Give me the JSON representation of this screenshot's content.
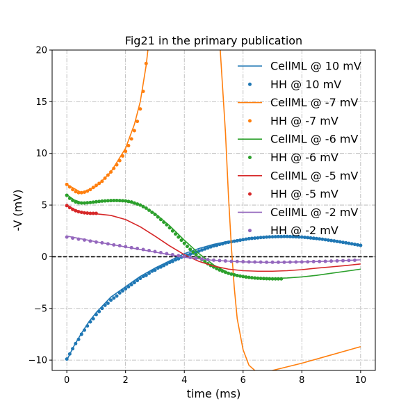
{
  "chart_data": {
    "type": "line",
    "title": "Fig21 in the primary publication",
    "xlabel": "time (ms)",
    "ylabel": "-V (mV)",
    "xlim": [
      -0.5,
      10.5
    ],
    "ylim": [
      -11,
      20
    ],
    "xticks": [
      0,
      2,
      4,
      6,
      8,
      10
    ],
    "yticks": [
      -10,
      -5,
      0,
      5,
      10,
      15,
      20
    ],
    "tick_labels_x": [
      "0",
      "2",
      "4",
      "6",
      "8",
      "10"
    ],
    "tick_labels_y": [
      "−10",
      "−5",
      "0",
      "5",
      "10",
      "15",
      "20"
    ],
    "grid": true,
    "legend_position": "top-right",
    "reference_line": {
      "y": 0,
      "style": "dashed",
      "color": "#000000"
    },
    "series": [
      {
        "name": "CellML @ 10 mV",
        "kind": "line",
        "color": "#1f77b4",
        "x": [
          0,
          0.25,
          0.5,
          0.75,
          1,
          1.5,
          2,
          2.5,
          3,
          3.5,
          4,
          4.5,
          5,
          5.5,
          6,
          6.5,
          7,
          7.5,
          8,
          8.5,
          9,
          9.5,
          10
        ],
        "y": [
          -10,
          -8.6,
          -7.4,
          -6.3,
          -5.4,
          -3.9,
          -2.9,
          -1.9,
          -1.1,
          -0.4,
          0.3,
          0.8,
          1.2,
          1.5,
          1.7,
          1.85,
          1.9,
          1.9,
          1.85,
          1.7,
          1.55,
          1.35,
          1.1
        ]
      },
      {
        "name": "HH @ 10 mV",
        "kind": "points",
        "color": "#1f77b4",
        "x": [
          0,
          0.1,
          0.2,
          0.3,
          0.4,
          0.5,
          0.6,
          0.7,
          0.8,
          0.9,
          1,
          1.1,
          1.2,
          1.3,
          1.4,
          1.5,
          1.6,
          1.7,
          1.8,
          1.9,
          2,
          2.1,
          2.2,
          2.3,
          2.4,
          2.5,
          2.6,
          2.7,
          2.8,
          2.9,
          3,
          3.1,
          3.2,
          3.3,
          3.4,
          3.5,
          3.6,
          3.7,
          3.8,
          3.9,
          4,
          4.1,
          4.2,
          4.3,
          4.4,
          4.5,
          4.6,
          4.7,
          4.8,
          4.9,
          5,
          5.1,
          5.2,
          5.3,
          5.4,
          5.5,
          5.6,
          5.7,
          5.8,
          5.9,
          6,
          6.1,
          6.2,
          6.3,
          6.4,
          6.5,
          6.6,
          6.7,
          6.8,
          6.9,
          7,
          7.1,
          7.2,
          7.3,
          7.4,
          7.5,
          7.6,
          7.7,
          7.8,
          7.9,
          8,
          8.1,
          8.2,
          8.3,
          8.4,
          8.5,
          8.6,
          8.7,
          8.8,
          8.9,
          9,
          9.1,
          9.2,
          9.3,
          9.4,
          9.5,
          9.6,
          9.7,
          9.8,
          9.9,
          10
        ],
        "y": [
          -9.9,
          -9.4,
          -8.9,
          -8.4,
          -8,
          -7.5,
          -7.1,
          -6.7,
          -6.3,
          -6,
          -5.6,
          -5.3,
          -5,
          -4.7,
          -4.5,
          -4.2,
          -4,
          -3.8,
          -3.5,
          -3.3,
          -3.1,
          -2.9,
          -2.7,
          -2.5,
          -2.3,
          -2.1,
          -1.9,
          -1.8,
          -1.6,
          -1.4,
          -1.3,
          -1.1,
          -1,
          -0.85,
          -0.7,
          -0.55,
          -0.45,
          -0.3,
          -0.2,
          -0.05,
          0.05,
          0.15,
          0.25,
          0.35,
          0.45,
          0.55,
          0.65,
          0.75,
          0.85,
          0.95,
          1.05,
          1.1,
          1.2,
          1.25,
          1.35,
          1.4,
          1.45,
          1.5,
          1.55,
          1.6,
          1.65,
          1.7,
          1.75,
          1.78,
          1.8,
          1.83,
          1.86,
          1.88,
          1.9,
          1.92,
          1.93,
          1.94,
          1.95,
          1.95,
          1.96,
          1.96,
          1.95,
          1.94,
          1.93,
          1.91,
          1.9,
          1.88,
          1.85,
          1.82,
          1.79,
          1.76,
          1.73,
          1.69,
          1.65,
          1.61,
          1.57,
          1.53,
          1.48,
          1.44,
          1.39,
          1.35,
          1.3,
          1.25,
          1.2,
          1.15,
          1.1
        ]
      },
      {
        "name": "CellML @ -7 mV",
        "kind": "line",
        "color": "#ff7f0e",
        "x": [
          0,
          0.5,
          1,
          1.5,
          2,
          2.3,
          2.5,
          2.7,
          2.8,
          5.2,
          5.4,
          5.5,
          5.6,
          5.7,
          5.8,
          6,
          6.2,
          6.6,
          7,
          8,
          9,
          10
        ],
        "y": [
          7,
          6.2,
          6.8,
          8.2,
          10.5,
          12.8,
          15,
          18.5,
          21,
          21,
          12,
          6,
          1,
          -3,
          -6,
          -9,
          -10.5,
          -11.5,
          -11,
          -10.3,
          -9.5,
          -8.7
        ]
      },
      {
        "name": "HH @ -7 mV",
        "kind": "points",
        "color": "#ff7f0e",
        "x": [
          0,
          0.1,
          0.2,
          0.3,
          0.4,
          0.5,
          0.6,
          0.7,
          0.8,
          0.9,
          1,
          1.1,
          1.2,
          1.3,
          1.4,
          1.5,
          1.6,
          1.7,
          1.8,
          1.9,
          2,
          2.1,
          2.2,
          2.3,
          2.4,
          2.5,
          2.6,
          2.7
        ],
        "y": [
          7,
          6.75,
          6.5,
          6.3,
          6.2,
          6.2,
          6.25,
          6.35,
          6.5,
          6.7,
          6.9,
          7.1,
          7.3,
          7.6,
          7.9,
          8.2,
          8.55,
          8.9,
          9.3,
          9.75,
          10.2,
          10.75,
          11.4,
          12.2,
          13.1,
          14.3,
          16,
          18.7
        ]
      },
      {
        "name": "CellML @ -6 mV",
        "kind": "line",
        "color": "#2ca02c",
        "x": [
          0,
          0.25,
          0.5,
          1,
          1.5,
          2,
          2.5,
          3,
          3.5,
          4,
          4.5,
          5,
          5.5,
          6,
          6.5,
          7,
          7.5,
          8,
          8.5,
          9,
          9.5,
          10
        ],
        "y": [
          6,
          5.5,
          5.25,
          5.3,
          5.4,
          5.35,
          5.0,
          4.2,
          3.0,
          1.6,
          0.3,
          -0.8,
          -1.55,
          -1.9,
          -2.05,
          -2.1,
          -2.05,
          -1.95,
          -1.8,
          -1.6,
          -1.4,
          -1.2
        ]
      },
      {
        "name": "HH @ -6 mV",
        "kind": "points",
        "color": "#2ca02c",
        "x": [
          0,
          0.1,
          0.2,
          0.3,
          0.4,
          0.5,
          0.6,
          0.7,
          0.8,
          0.9,
          1,
          1.1,
          1.2,
          1.3,
          1.4,
          1.5,
          1.6,
          1.7,
          1.8,
          1.9,
          2,
          2.1,
          2.2,
          2.3,
          2.4,
          2.5,
          2.6,
          2.7,
          2.8,
          2.9,
          3,
          3.1,
          3.2,
          3.3,
          3.4,
          3.5,
          3.6,
          3.7,
          3.8,
          3.9,
          4,
          4.1,
          4.2,
          4.3,
          4.4,
          4.5,
          4.6,
          4.7,
          4.8,
          4.9,
          5,
          5.1,
          5.2,
          5.3,
          5.4,
          5.5,
          5.6,
          5.7,
          5.8,
          5.9,
          6,
          6.1,
          6.2,
          6.3,
          6.4,
          6.5,
          6.6,
          6.7,
          6.8,
          6.9,
          7,
          7.1,
          7.2,
          7.3
        ],
        "y": [
          5.95,
          5.65,
          5.45,
          5.3,
          5.22,
          5.2,
          5.2,
          5.22,
          5.25,
          5.28,
          5.32,
          5.35,
          5.38,
          5.4,
          5.42,
          5.43,
          5.44,
          5.44,
          5.43,
          5.42,
          5.4,
          5.35,
          5.3,
          5.2,
          5.1,
          5.0,
          4.85,
          4.7,
          4.5,
          4.3,
          4.1,
          3.85,
          3.6,
          3.35,
          3.1,
          2.8,
          2.5,
          2.2,
          1.9,
          1.6,
          1.3,
          1.0,
          0.72,
          0.45,
          0.2,
          -0.05,
          -0.28,
          -0.48,
          -0.68,
          -0.85,
          -1.0,
          -1.15,
          -1.28,
          -1.4,
          -1.5,
          -1.6,
          -1.68,
          -1.75,
          -1.82,
          -1.87,
          -1.92,
          -1.96,
          -2.0,
          -2.03,
          -2.06,
          -2.08,
          -2.1,
          -2.11,
          -2.12,
          -2.13,
          -2.14,
          -2.14,
          -2.14,
          -2.14
        ]
      },
      {
        "name": "CellML @ -5 mV",
        "kind": "line",
        "color": "#d62728",
        "x": [
          0,
          0.25,
          0.5,
          1,
          1.5,
          2,
          2.5,
          3,
          3.5,
          4,
          4.5,
          5,
          5.5,
          6,
          6.5,
          7,
          7.5,
          8,
          8.5,
          9,
          9.5,
          10
        ],
        "y": [
          5,
          4.6,
          4.3,
          4.15,
          4.0,
          3.6,
          2.9,
          2.0,
          1.05,
          0.2,
          -0.45,
          -0.9,
          -1.2,
          -1.35,
          -1.4,
          -1.4,
          -1.35,
          -1.25,
          -1.1,
          -0.98,
          -0.85,
          -0.7
        ]
      },
      {
        "name": "HH @ -5 mV",
        "kind": "points",
        "color": "#d62728",
        "x": [
          0,
          0.1,
          0.2,
          0.3,
          0.4,
          0.5,
          0.6,
          0.7,
          0.8,
          0.9,
          1
        ],
        "y": [
          4.95,
          4.75,
          4.58,
          4.45,
          4.36,
          4.3,
          4.25,
          4.22,
          4.2,
          4.2,
          4.2
        ]
      },
      {
        "name": "CellML @ -2 mV",
        "kind": "line",
        "color": "#9467bd",
        "x": [
          0,
          1,
          2,
          3,
          4,
          5,
          6,
          7,
          8,
          9,
          10
        ],
        "y": [
          2,
          1.45,
          0.95,
          0.45,
          -0.05,
          -0.35,
          -0.5,
          -0.55,
          -0.5,
          -0.42,
          -0.3
        ]
      },
      {
        "name": "HH @ -2 mV",
        "kind": "points",
        "color": "#9467bd",
        "x": [
          0,
          0.2,
          0.4,
          0.6,
          0.8,
          1,
          1.2,
          1.4,
          1.6,
          1.8,
          2,
          2.2,
          2.4,
          2.6,
          2.8,
          3,
          3.2,
          3.4,
          3.6,
          3.8,
          4,
          4.2,
          4.4,
          4.6,
          4.8,
          5,
          5.2,
          5.4,
          5.6,
          5.8,
          6,
          6.2,
          6.4,
          6.6,
          6.8,
          7,
          7.2,
          7.4,
          7.6,
          7.8,
          8,
          8.2,
          8.4,
          8.6,
          8.8,
          9,
          9.2,
          9.4,
          9.6,
          9.8
        ],
        "y": [
          1.9,
          1.8,
          1.7,
          1.62,
          1.52,
          1.42,
          1.35,
          1.25,
          1.15,
          1.07,
          0.98,
          0.88,
          0.8,
          0.7,
          0.6,
          0.5,
          0.4,
          0.3,
          0.2,
          0.1,
          0.02,
          -0.07,
          -0.15,
          -0.22,
          -0.28,
          -0.33,
          -0.37,
          -0.41,
          -0.44,
          -0.46,
          -0.48,
          -0.5,
          -0.51,
          -0.52,
          -0.53,
          -0.53,
          -0.53,
          -0.53,
          -0.52,
          -0.51,
          -0.5,
          -0.49,
          -0.47,
          -0.46,
          -0.44,
          -0.42,
          -0.4,
          -0.38,
          -0.36,
          -0.34
        ]
      }
    ]
  }
}
